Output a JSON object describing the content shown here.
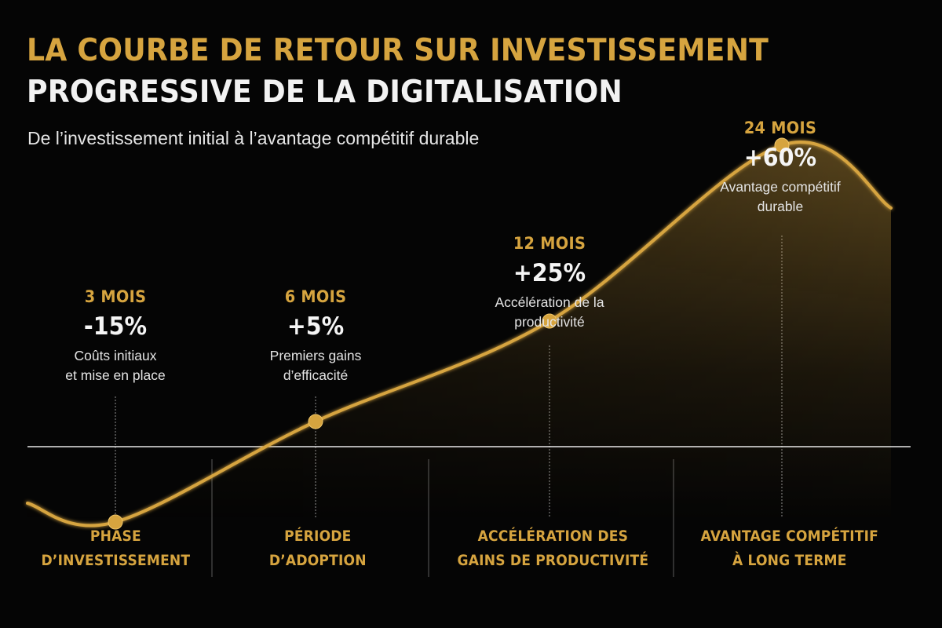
{
  "title_line1": "LA COURBE DE RETOUR SUR INVESTISSEMENT",
  "title_line2": "PROGRESSIVE DE LA DIGITALISATION",
  "subtitle": "De l’investissement initial à l’avantage compétitif durable",
  "colors": {
    "background": "#050505",
    "accent_gold": "#d6a43f",
    "text_white": "#f2f2f2",
    "baseline": "#e8e8e8"
  },
  "chart_data": {
    "type": "line",
    "title": "LA COURBE DE RETOUR SUR INVESTISSEMENT PROGRESSIVE DE LA DIGITALISATION",
    "subtitle": "De l’investissement initial à l’avantage compétitif durable",
    "baseline_value": 0,
    "ylim": [
      -25,
      75
    ],
    "grid": false,
    "legend": "none",
    "milestones": [
      {
        "month_label": "3 MOIS",
        "value_label": "-15%",
        "value": -15,
        "description": "Coûts initiaux\net mise en place"
      },
      {
        "month_label": "6 MOIS",
        "value_label": "+5%",
        "value": 5,
        "description": "Premiers gains\nd’efficacité"
      },
      {
        "month_label": "12 MOIS",
        "value_label": "+25%",
        "value": 25,
        "description": "Accélération de la\nproductivité"
      },
      {
        "month_label": "24 MOIS",
        "value_label": "+60%",
        "value": 60,
        "description": "Avantage compétitif\ndurable"
      }
    ],
    "phases": [
      "PHASE\nD’INVESTISSEMENT",
      "PÉRIODE\nD’ADOPTION",
      "ACCÉLÉRATION DES\nGAINS DE PRODUCTIVITÉ",
      "AVANTAGE COMPÉTITIF\nÀ LONG TERME"
    ]
  }
}
